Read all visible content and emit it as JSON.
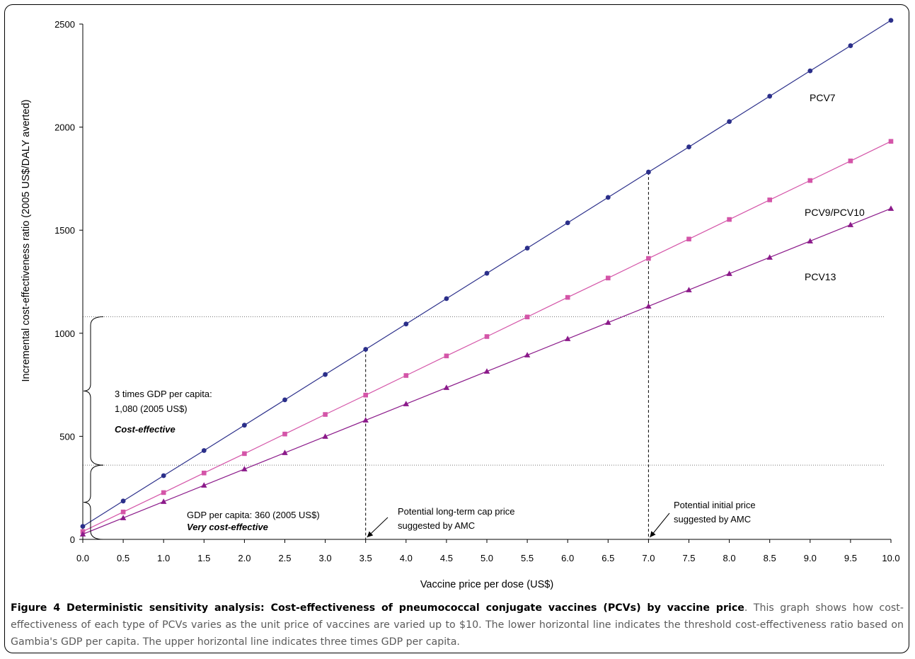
{
  "chart_data": {
    "type": "line",
    "xlabel": "Vaccine price per dose (US$)",
    "ylabel": "Incremental cost-effectiveness ratio (2005 US$/DALY averted)",
    "xlim": [
      0,
      10
    ],
    "ylim": [
      0,
      2500
    ],
    "x_ticks": [
      "0.0",
      "0.5",
      "1.0",
      "1.5",
      "2.0",
      "2.5",
      "3.0",
      "3.5",
      "4.0",
      "4.5",
      "5.0",
      "5.5",
      "6.0",
      "6.5",
      "7.0",
      "7.5",
      "8.0",
      "8.5",
      "9.0",
      "9.5",
      "10.0"
    ],
    "y_ticks": [
      "0",
      "500",
      "1000",
      "1500",
      "2000",
      "2500"
    ],
    "x": [
      0,
      0.5,
      1,
      1.5,
      2,
      2.5,
      3,
      3.5,
      4,
      4.5,
      5,
      5.5,
      6,
      6.5,
      7,
      7.5,
      8,
      8.5,
      9,
      9.5,
      10
    ],
    "series": [
      {
        "name": "PCV7",
        "color": "#2b2f8a",
        "marker": "circle",
        "values": [
          63,
          186,
          309,
          431,
          554,
          677,
          800,
          922,
          1045,
          1168,
          1291,
          1413,
          1536,
          1659,
          1782,
          1904,
          2027,
          2150,
          2273,
          2395,
          2518
        ]
      },
      {
        "name": "PCV9/PCV10",
        "color": "#d455a8",
        "marker": "square",
        "values": [
          38,
          133,
          227,
          322,
          416,
          511,
          606,
          700,
          795,
          890,
          984,
          1079,
          1174,
          1268,
          1363,
          1457,
          1552,
          1647,
          1741,
          1836,
          1931
        ]
      },
      {
        "name": "PCV13",
        "color": "#8b1a8a",
        "marker": "triangle",
        "values": [
          25,
          104,
          183,
          262,
          341,
          420,
          499,
          578,
          657,
          736,
          815,
          894,
          973,
          1052,
          1131,
          1210,
          1289,
          1368,
          1447,
          1526,
          1605
        ]
      }
    ],
    "thresholds": [
      {
        "value": 1080,
        "label_lines": [
          "3 times GDP per capita:",
          "1,080 (2005 US$)"
        ],
        "category": "Cost-effective"
      },
      {
        "value": 360,
        "label_lines": [
          "GDP per capita: 360 (2005 US$)"
        ],
        "category": "Very cost-effective"
      }
    ],
    "price_markers": [
      {
        "x": 3.5,
        "label_lines": [
          "Potential long-term cap price",
          "suggested by AMC"
        ]
      },
      {
        "x": 7.0,
        "label_lines": [
          "Potential initial price",
          "suggested by AMC"
        ]
      }
    ]
  },
  "caption": {
    "title": "Figure 4 Deterministic sensitivity analysis: Cost-effectiveness of pneumococcal conjugate vaccines (PCVs) by vaccine price",
    "text": ". This graph shows how cost-effectiveness of each type of PCVs varies as the unit price of vaccines are varied up to $10. The lower horizontal line indicates the threshold cost-effectiveness ratio based on Gambia's GDP per capita. The upper horizontal line indicates three times GDP per capita."
  }
}
